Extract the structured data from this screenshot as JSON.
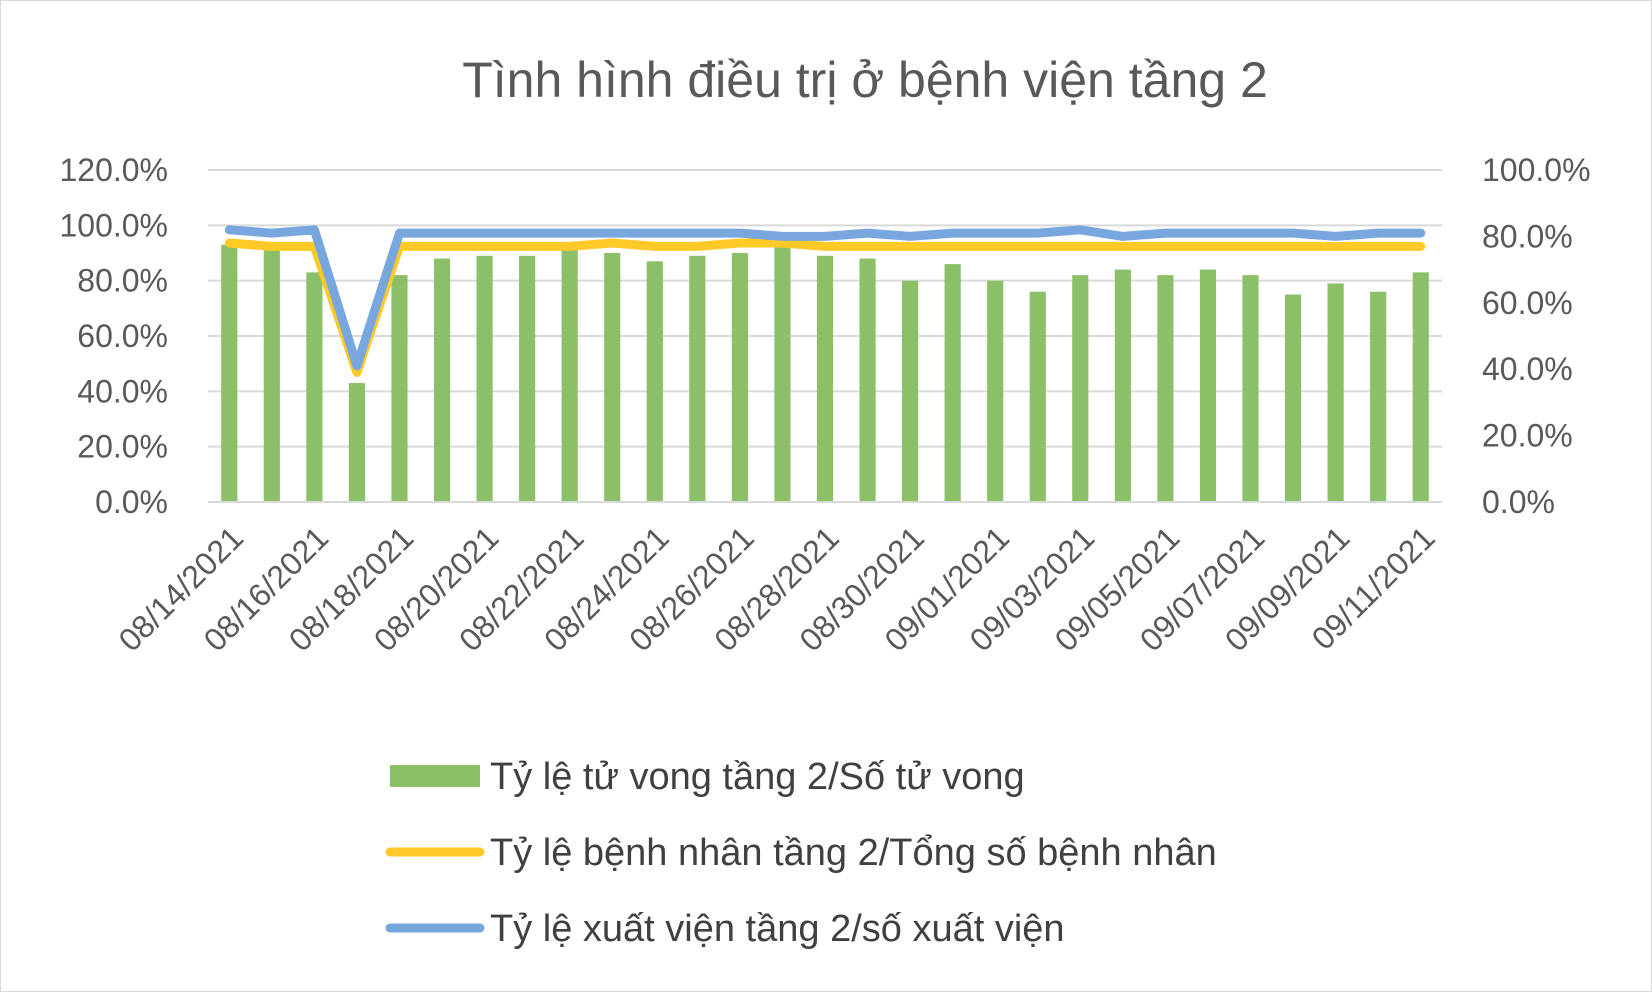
{
  "chart_data": {
    "type": "bar",
    "title": "Tình hình điều trị ở bệnh viện tầng 2",
    "categories": [
      "08/14/2021",
      "08/15/2021",
      "08/16/2021",
      "08/17/2021",
      "08/18/2021",
      "08/19/2021",
      "08/20/2021",
      "08/21/2021",
      "08/22/2021",
      "08/23/2021",
      "08/24/2021",
      "08/25/2021",
      "08/26/2021",
      "08/27/2021",
      "08/28/2021",
      "08/29/2021",
      "08/30/2021",
      "08/31/2021",
      "09/01/2021",
      "09/02/2021",
      "09/03/2021",
      "09/04/2021",
      "09/05/2021",
      "09/06/2021",
      "09/07/2021",
      "09/08/2021",
      "09/09/2021",
      "09/10/2021",
      "09/11/2021"
    ],
    "x_tick_labels": [
      "08/14/2021",
      "08/16/2021",
      "08/18/2021",
      "08/20/2021",
      "08/22/2021",
      "08/24/2021",
      "08/26/2021",
      "08/28/2021",
      "08/30/2021",
      "09/01/2021",
      "09/03/2021",
      "09/05/2021",
      "09/07/2021",
      "09/09/2021",
      "09/11/2021"
    ],
    "y_left": {
      "min": 0,
      "max": 1.2,
      "ticks": [
        "0.0%",
        "20.0%",
        "40.0%",
        "60.0%",
        "80.0%",
        "100.0%",
        "120.0%"
      ]
    },
    "y_right": {
      "min": 0,
      "max": 1.0,
      "ticks": [
        "0.0%",
        "20.0%",
        "40.0%",
        "60.0%",
        "80.0%",
        "100.0%"
      ]
    },
    "grid": true,
    "legend_position": "bottom",
    "series": [
      {
        "name": "Tỷ lệ tử vong tầng 2/Số tử vong",
        "kind": "bar",
        "axis": "left",
        "color": "#8cc068",
        "values": [
          0.93,
          0.92,
          0.83,
          0.43,
          0.82,
          0.88,
          0.89,
          0.89,
          0.92,
          0.9,
          0.87,
          0.89,
          0.9,
          0.92,
          0.89,
          0.88,
          0.8,
          0.86,
          0.8,
          0.76,
          0.82,
          0.84,
          0.82,
          0.84,
          0.82,
          0.75,
          0.79,
          0.76,
          0.83
        ]
      },
      {
        "name": "Tỷ lệ bệnh nhân tầng 2/Tổng số bệnh nhân",
        "kind": "line",
        "axis": "right",
        "color": "#ffc928",
        "values": [
          0.78,
          0.77,
          0.77,
          0.39,
          0.77,
          0.77,
          0.77,
          0.77,
          0.77,
          0.78,
          0.77,
          0.77,
          0.78,
          0.78,
          0.77,
          0.77,
          0.77,
          0.77,
          0.77,
          0.77,
          0.77,
          0.77,
          0.77,
          0.77,
          0.77,
          0.77,
          0.77,
          0.77,
          0.77
        ]
      },
      {
        "name": "Tỷ lệ xuất viện tầng 2/số xuất viện",
        "kind": "line",
        "axis": "right",
        "color": "#78a7df",
        "values": [
          0.82,
          0.81,
          0.82,
          0.41,
          0.81,
          0.81,
          0.81,
          0.81,
          0.81,
          0.81,
          0.81,
          0.81,
          0.81,
          0.8,
          0.8,
          0.81,
          0.8,
          0.81,
          0.81,
          0.81,
          0.82,
          0.8,
          0.81,
          0.81,
          0.81,
          0.81,
          0.8,
          0.81,
          0.81
        ]
      }
    ]
  }
}
